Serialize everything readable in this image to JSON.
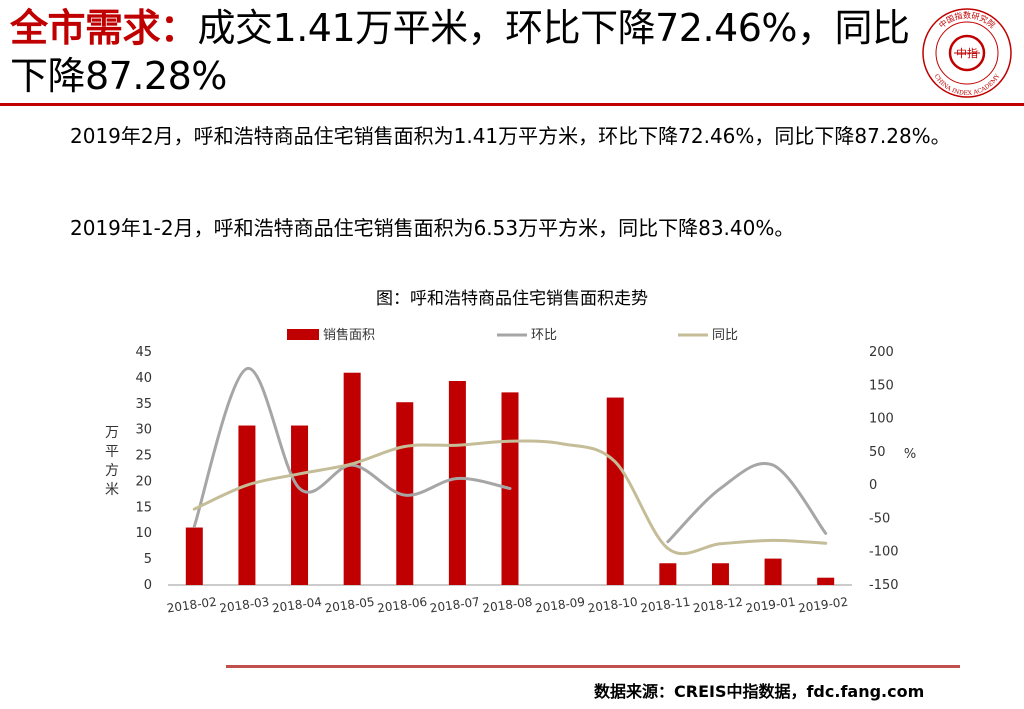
{
  "heading": {
    "highlight": "全市需求：",
    "rest": "成交1.41万平米，环比下降72.46%，同比下降87.28%"
  },
  "logo": {
    "top_text": "中国指数研究院",
    "center_text": "中指",
    "bottom_text": "CHINA INDEX ACADEMY",
    "color": "#c00000"
  },
  "paragraphs": [
    "2019年2月，呼和浩特商品住宅销售面积为1.41万平方米，环比下降72.46%，同比下降87.28%。",
    "2019年1-2月，呼和浩特商品住宅销售面积为6.53万平方米，同比下降83.40%。"
  ],
  "source": "数据来源：CREIS中指数据，fdc.fang.com",
  "chart_data": {
    "type": "bar",
    "title": "图：呼和浩特商品住宅销售面积走势",
    "categories": [
      "2018-02",
      "2018-03",
      "2018-04",
      "2018-05",
      "2018-06",
      "2018-07",
      "2018-08",
      "2018-09",
      "2018-10",
      "2018-11",
      "2018-12",
      "2019-01",
      "2019-02"
    ],
    "ylabel_left": "万平方米",
    "ylabel_right": "%",
    "ylim_left": [
      0,
      45
    ],
    "yticks_left": [
      0,
      5,
      10,
      15,
      20,
      25,
      30,
      35,
      40,
      45
    ],
    "ylim_right": [
      -150,
      200
    ],
    "yticks_right": [
      -150,
      -100,
      -50,
      0,
      50,
      100,
      150,
      200
    ],
    "legend_position": "top",
    "grid": false,
    "series": [
      {
        "name": "销售面积",
        "type": "bar",
        "axis": "left",
        "color": "#c00000",
        "values": [
          11.1,
          30.8,
          30.8,
          41.0,
          35.3,
          39.4,
          37.2,
          null,
          36.2,
          4.2,
          4.2,
          5.1,
          1.41
        ]
      },
      {
        "name": "环比",
        "type": "line",
        "axis": "right",
        "color": "#a6a6a6",
        "values": [
          -62,
          175,
          -5,
          30,
          -15,
          10,
          -5,
          null,
          null,
          -85,
          -5,
          30,
          -72.46
        ]
      },
      {
        "name": "同比",
        "type": "line",
        "axis": "right",
        "color": "#c4bd97",
        "values": [
          -36,
          0,
          17,
          32,
          58,
          60,
          66,
          62,
          35,
          -95,
          -88,
          -83,
          -87.28
        ]
      }
    ]
  }
}
